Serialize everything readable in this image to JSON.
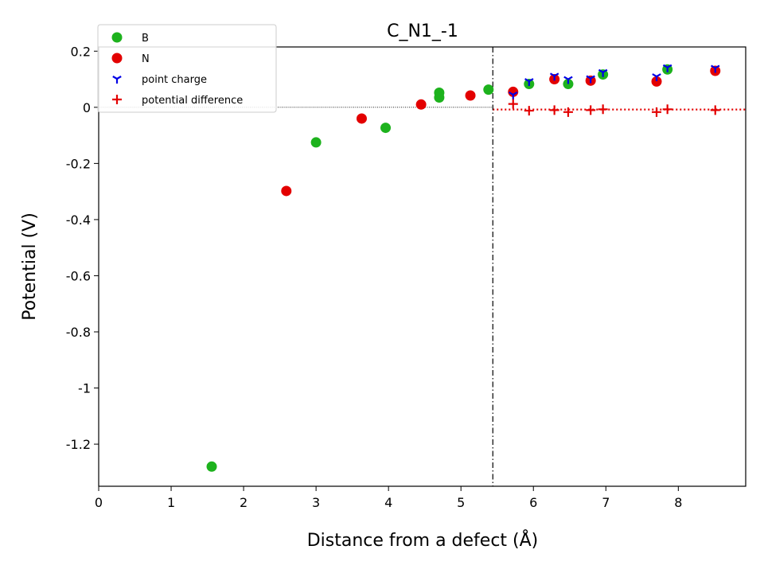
{
  "chart_data": {
    "type": "scatter",
    "title": "C_N1_-1",
    "xlabel": "Distance from a defect (Å)",
    "ylabel": "Potential (V)",
    "xlim": [
      0,
      8.93
    ],
    "ylim": [
      -1.35,
      0.215
    ],
    "x_ticks": [
      0,
      1,
      2,
      3,
      4,
      5,
      6,
      7,
      8
    ],
    "x_tick_labels": [
      "0",
      "1",
      "2",
      "3",
      "4",
      "5",
      "6",
      "7",
      "8"
    ],
    "y_ticks": [
      0.2,
      0,
      -0.2,
      -0.4,
      -0.6,
      -0.8,
      -1,
      -1.2
    ],
    "y_tick_labels": [
      "0.2",
      "0",
      "-0.2",
      "-0.4",
      "-0.6",
      "-0.8",
      "-1",
      "-1.2"
    ],
    "grid": false,
    "legend_position": "top-left",
    "zero_line": 0,
    "defect_region_boundary_x": 5.44,
    "average_potential_difference": -0.008,
    "series": [
      {
        "name": "B",
        "marker": "circle",
        "color": "#1db21d",
        "points": [
          {
            "x": 1.56,
            "y": -1.28
          },
          {
            "x": 3.0,
            "y": -0.125
          },
          {
            "x": 3.96,
            "y": -0.073
          },
          {
            "x": 4.7,
            "y": 0.052
          },
          {
            "x": 4.7,
            "y": 0.035
          },
          {
            "x": 5.38,
            "y": 0.063
          },
          {
            "x": 5.94,
            "y": 0.083
          },
          {
            "x": 6.48,
            "y": 0.083
          },
          {
            "x": 6.96,
            "y": 0.117
          },
          {
            "x": 7.85,
            "y": 0.135
          }
        ]
      },
      {
        "name": "N",
        "marker": "circle",
        "color": "#e30000",
        "points": [
          {
            "x": 2.59,
            "y": -0.298
          },
          {
            "x": 3.63,
            "y": -0.04
          },
          {
            "x": 4.45,
            "y": 0.01
          },
          {
            "x": 5.13,
            "y": 0.042
          },
          {
            "x": 5.72,
            "y": 0.055
          },
          {
            "x": 6.29,
            "y": 0.1
          },
          {
            "x": 6.79,
            "y": 0.095
          },
          {
            "x": 7.7,
            "y": 0.092
          },
          {
            "x": 8.51,
            "y": 0.13
          }
        ]
      },
      {
        "name": "point charge",
        "marker": "tri_down",
        "color": "#0000e6",
        "points": [
          {
            "x": 5.72,
            "y": 0.045
          },
          {
            "x": 5.94,
            "y": 0.093
          },
          {
            "x": 6.29,
            "y": 0.112
          },
          {
            "x": 6.48,
            "y": 0.1
          },
          {
            "x": 6.79,
            "y": 0.103
          },
          {
            "x": 6.96,
            "y": 0.125
          },
          {
            "x": 7.7,
            "y": 0.11
          },
          {
            "x": 7.85,
            "y": 0.142
          },
          {
            "x": 8.51,
            "y": 0.14
          }
        ]
      },
      {
        "name": "potential difference",
        "marker": "plus",
        "color": "#e30000",
        "points": [
          {
            "x": 5.72,
            "y": 0.012
          },
          {
            "x": 5.94,
            "y": -0.012
          },
          {
            "x": 6.29,
            "y": -0.01
          },
          {
            "x": 6.48,
            "y": -0.017
          },
          {
            "x": 6.79,
            "y": -0.01
          },
          {
            "x": 6.96,
            "y": -0.007
          },
          {
            "x": 7.7,
            "y": -0.017
          },
          {
            "x": 7.85,
            "y": -0.007
          },
          {
            "x": 8.51,
            "y": -0.01
          }
        ]
      }
    ]
  }
}
